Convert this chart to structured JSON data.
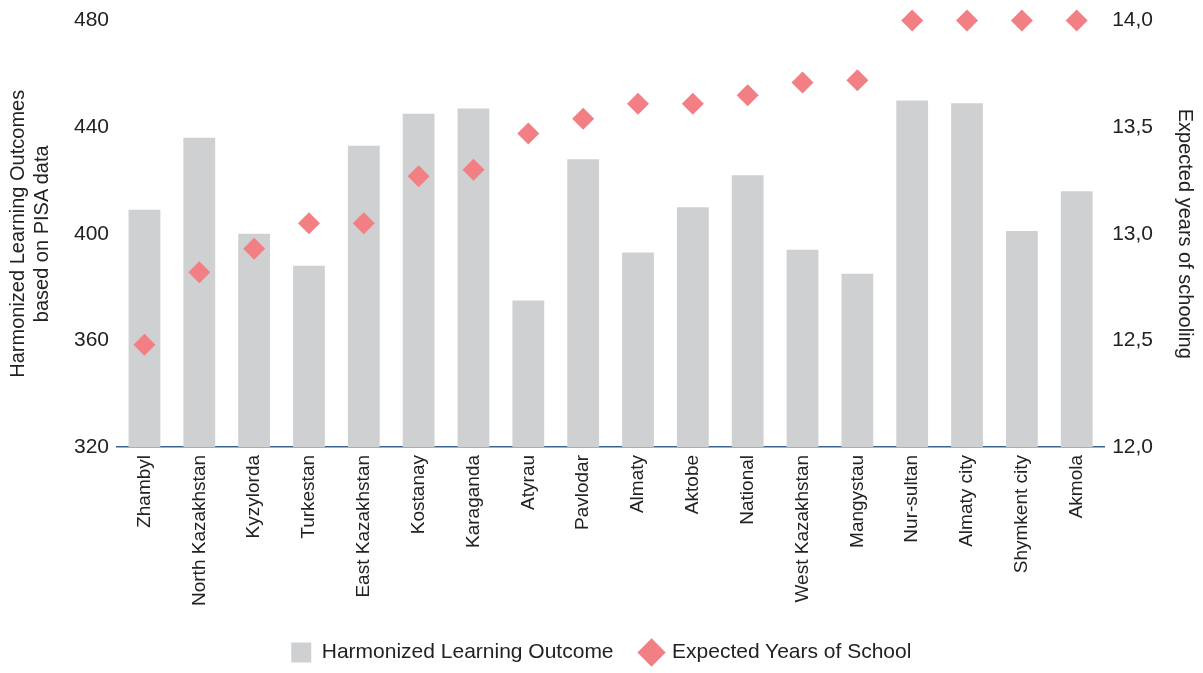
{
  "chart_data": {
    "type": "bar",
    "ylabel": "Harmonized Learning Outcomes based on PISA data",
    "y2label": "Expected years of schooling",
    "categories": [
      "Zhambyl",
      "North Kazakhstan",
      "Kyzylorda",
      "Turkestan",
      "East Kazakhstan",
      "Kostanay",
      "Karaganda",
      "Atyrau",
      "Pavlodar",
      "Almaty",
      "Aktobe",
      "National",
      "West Kazakhstan",
      "Mangystau",
      "Nur-sultan",
      "Almaty city",
      "Shymkent city",
      "Akmola"
    ],
    "series": [
      {
        "name": "Harmonized Learning Outcome",
        "color": "#cfd0d2",
        "values": [
          409,
          436,
          400,
          388,
          433,
          445,
          447,
          375,
          428,
          393,
          410,
          422,
          394,
          385,
          450,
          449,
          401,
          416
        ]
      },
      {
        "name": "Expected Years of School",
        "type": "scatter",
        "axis": "y2",
        "color": "#f17f84",
        "marker": "diamond",
        "values": [
          12.48,
          12.82,
          12.93,
          13.05,
          13.05,
          13.27,
          13.3,
          13.47,
          13.54,
          13.61,
          13.61,
          13.65,
          13.71,
          13.72,
          14.0,
          14.0,
          14.0,
          14.0
        ]
      }
    ],
    "ylim": [
      320,
      480
    ],
    "yticks": [
      320,
      360,
      400,
      440,
      480
    ],
    "y2lim": [
      12,
      14
    ],
    "y2ticks": [
      {
        "value": 12,
        "label": "12,0"
      },
      {
        "value": 12.5,
        "label": "12,5"
      },
      {
        "value": 13,
        "label": "13,0"
      },
      {
        "value": 13.5,
        "label": "13,5"
      },
      {
        "value": 14,
        "label": "14,0"
      }
    ],
    "grid": false,
    "legend": "bottom"
  }
}
